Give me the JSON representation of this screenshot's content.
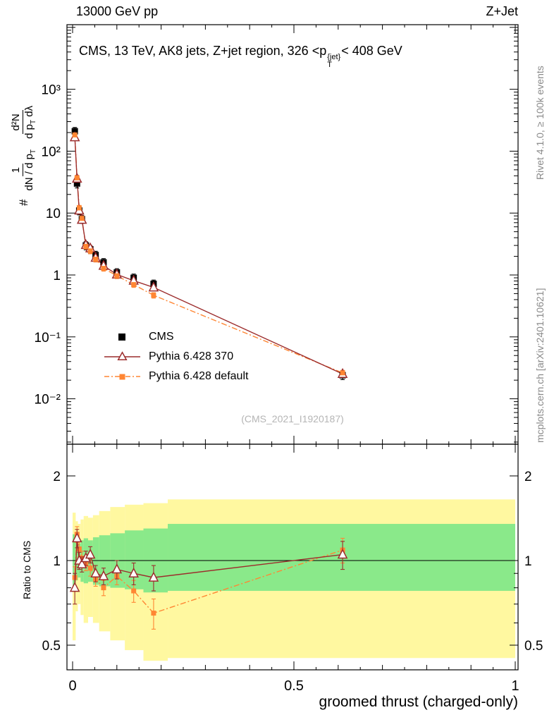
{
  "header": {
    "left": "13000 GeV pp",
    "right": "Z+Jet"
  },
  "title": {
    "prefix": "CMS, 13 TeV, AK8 jets, Z+jet region, 326 <p",
    "sup": "{jet}",
    "sub": "T",
    "suffix": "< 408 GeV"
  },
  "ylabel": {
    "hash": "#",
    "f1_num": "1",
    "f1_den": "dN / d p",
    "f1_den_sub": "T",
    "f2_num": "d²N",
    "f2_den_a": "d p",
    "f2_den_a_sub": "T",
    "f2_den_b": " dλ"
  },
  "ratio_ylabel": "Ratio to CMS",
  "xlabel": "groomed thrust (charged-only)",
  "watermark": "(CMS_2021_I1920187)",
  "credits": {
    "top": "Rivet 4.1.0, ≥ 100k events",
    "bottom": "mcplots.cern.ch [arXiv:2401.10621]"
  },
  "legend": {
    "items": [
      {
        "label": "CMS"
      },
      {
        "label": "Pythia 6.428 370"
      },
      {
        "label": "Pythia 6.428 default"
      }
    ]
  },
  "colors": {
    "cms": "#000000",
    "pythia370": "#9c2c2c",
    "pythia_default": "#ff8633",
    "band_outer": "#fff8a0",
    "band_inner": "#8ae98a"
  },
  "chart_data": {
    "type": "line",
    "title": "CMS, 13 TeV, AK8 jets, Z+jet region, 326 < pT{jet} < 408 GeV",
    "xlabel": "groomed thrust (charged-only)",
    "ylabel": "# 1/(dN/dpT) d²N/(dpT dλ)",
    "legend_position": "middle-left",
    "x_axis": {
      "lim": [
        0,
        1
      ],
      "major_ticks": [
        {
          "v": 0,
          "label": "0"
        },
        {
          "v": 0.5,
          "label": "0.5"
        },
        {
          "v": 1,
          "label": "1"
        }
      ],
      "minor_step": 0.05
    },
    "main_axis": {
      "scale": "log",
      "lim": [
        0.002,
        11000
      ],
      "ticks": [
        {
          "v": 1000,
          "label": "10³"
        },
        {
          "v": 100,
          "label": "10²"
        },
        {
          "v": 10,
          "label": "10"
        },
        {
          "v": 1,
          "label": "1"
        },
        {
          "v": 0.1,
          "label": "10⁻¹"
        },
        {
          "v": 0.01,
          "label": "10⁻²"
        }
      ]
    },
    "ratio_axis": {
      "scale": "log",
      "lim": [
        0.41,
        2.59
      ],
      "ticks": [
        {
          "v": 2,
          "label": "2"
        },
        {
          "v": 1,
          "label": "1"
        },
        {
          "v": 0.5,
          "label": "0.5"
        }
      ],
      "minor_ticks": [
        0.6,
        0.7,
        0.8,
        0.9
      ]
    },
    "x": [
      0.005,
      0.01,
      0.015,
      0.021,
      0.03,
      0.04,
      0.052,
      0.07,
      0.1,
      0.138,
      0.183,
      0.61
    ],
    "series": [
      {
        "name": "CMS",
        "marker": "filled-square",
        "color": "#000000",
        "rel_err": 0.15,
        "values": [
          210,
          30,
          11,
          8.0,
          3.0,
          2.6,
          2.1,
          1.6,
          1.1,
          0.9,
          0.72,
          0.024
        ]
      },
      {
        "name": "Pythia 6.428 370",
        "marker": "open-triangle",
        "line": "solid",
        "color": "#9c2c2c",
        "rel_err": 0.1,
        "values": [
          168,
          36,
          11.0,
          7.8,
          3.05,
          2.7,
          1.9,
          1.41,
          1.02,
          0.81,
          0.63,
          0.0252
        ]
      },
      {
        "name": "Pythia 6.428 default",
        "marker": "filled-square",
        "line": "dashdot",
        "color": "#ff8633",
        "rel_err": 0.1,
        "values": [
          183,
          37,
          12.1,
          8.2,
          2.9,
          2.45,
          1.8,
          1.28,
          0.97,
          0.7,
          0.47,
          0.0262
        ]
      }
    ],
    "ratio": {
      "reference": 1,
      "series": [
        {
          "name": "Pythia 6.428 370",
          "color": "#9c2c2c",
          "line": "solid",
          "marker": "open-triangle",
          "values": [
            0.8,
            1.2,
            1.0,
            0.97,
            1.02,
            1.05,
            0.9,
            0.88,
            0.93,
            0.9,
            0.87,
            1.05
          ],
          "errors": [
            0.1,
            0.09,
            0.07,
            0.06,
            0.06,
            0.07,
            0.06,
            0.06,
            0.07,
            0.08,
            0.09,
            0.12
          ]
        },
        {
          "name": "Pythia 6.428 default",
          "color": "#ff8633",
          "line": "dashdot",
          "marker": "filled-square",
          "values": [
            0.87,
            1.24,
            1.1,
            1.02,
            0.97,
            0.94,
            0.86,
            0.8,
            0.88,
            0.78,
            0.65,
            1.09
          ],
          "errors": [
            0.08,
            0.08,
            0.07,
            0.06,
            0.05,
            0.06,
            0.05,
            0.05,
            0.06,
            0.07,
            0.08,
            0.11
          ]
        }
      ],
      "bands": {
        "edges": [
          0,
          0.007,
          0.012,
          0.018,
          0.025,
          0.035,
          0.046,
          0.06,
          0.085,
          0.118,
          0.16,
          0.215,
          1.0
        ],
        "outer": [
          [
            0.52,
            1.48
          ],
          [
            0.66,
            1.38
          ],
          [
            0.7,
            1.35
          ],
          [
            0.64,
            1.4
          ],
          [
            0.6,
            1.44
          ],
          [
            0.63,
            1.42
          ],
          [
            0.6,
            1.45
          ],
          [
            0.56,
            1.5
          ],
          [
            0.52,
            1.55
          ],
          [
            0.48,
            1.58
          ],
          [
            0.44,
            1.6
          ],
          [
            0.45,
            1.65
          ]
        ],
        "inner": [
          [
            0.8,
            1.24
          ],
          [
            0.85,
            1.17
          ],
          [
            0.87,
            1.15
          ],
          [
            0.84,
            1.18
          ],
          [
            0.83,
            1.2
          ],
          [
            0.84,
            1.18
          ],
          [
            0.82,
            1.21
          ],
          [
            0.81,
            1.23
          ],
          [
            0.8,
            1.25
          ],
          [
            0.79,
            1.28
          ],
          [
            0.77,
            1.3
          ],
          [
            0.78,
            1.35
          ]
        ]
      }
    }
  }
}
